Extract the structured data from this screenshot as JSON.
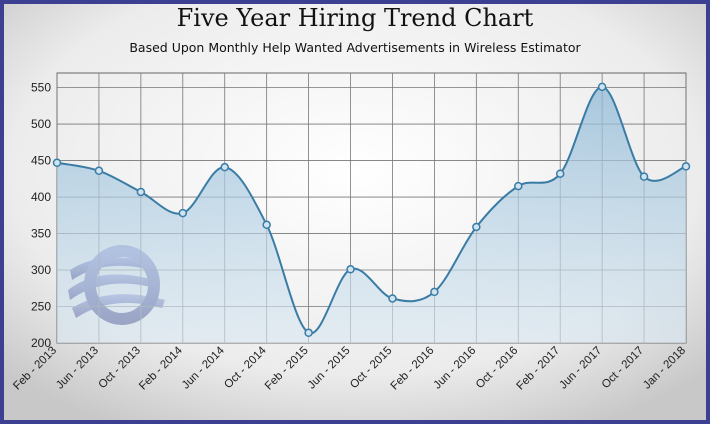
{
  "chart_data": {
    "type": "line",
    "title": "Five Year Hiring Trend Chart",
    "subtitle": "Based Upon Monthly Help Wanted Advertisements in Wireless Estimator",
    "categories": [
      "Feb - 2013",
      "Jun - 2013",
      "Oct - 2013",
      "Feb - 2014",
      "Jun - 2014",
      "Oct - 2014",
      "Feb - 2015",
      "Jun - 2015",
      "Oct - 2015",
      "Feb - 2016",
      "Jun - 2016",
      "Oct - 2016",
      "Feb - 2017",
      "Jun - 2017",
      "Oct - 2017",
      "Jan - 2018"
    ],
    "series": [
      {
        "name": "Help Wanted Advertisements",
        "color": "#3a7ca5",
        "values": [
          447,
          436,
          407,
          378,
          441,
          362,
          214,
          301,
          261,
          270,
          359,
          415,
          432,
          551,
          428,
          442
        ]
      }
    ],
    "ylim": [
      200,
      570
    ],
    "yticks": [
      200,
      250,
      300,
      350,
      400,
      450,
      500,
      550
    ],
    "grid": true
  }
}
